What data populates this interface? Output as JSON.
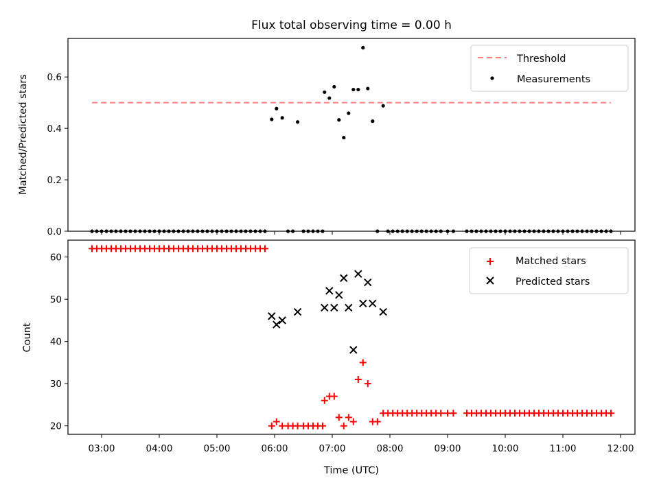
{
  "chart_data": [
    {
      "type": "scatter",
      "title": "Flux total observing time = 0.00 h",
      "ylabel": "Matched/Predicted stars",
      "xlim": [
        "02:25",
        "12:15"
      ],
      "ylim": [
        0,
        0.75
      ],
      "yticks": [
        "0.0",
        "0.2",
        "0.4",
        "0.6"
      ],
      "threshold": {
        "name": "Threshold",
        "value": 0.5,
        "x_start": "02:50",
        "x_end": "11:50",
        "color": "#ff7f7f"
      },
      "legend": {
        "position": "top-right",
        "entries": [
          "Threshold",
          "Measurements"
        ]
      },
      "series": [
        {
          "name": "Measurements",
          "color": "#000000",
          "points": [
            [
              "02:50",
              0
            ],
            [
              "02:55",
              0
            ],
            [
              "03:00",
              0
            ],
            [
              "03:05",
              0
            ],
            [
              "03:10",
              0
            ],
            [
              "03:15",
              0
            ],
            [
              "03:20",
              0
            ],
            [
              "03:25",
              0
            ],
            [
              "03:30",
              0
            ],
            [
              "03:35",
              0
            ],
            [
              "03:40",
              0
            ],
            [
              "03:45",
              0
            ],
            [
              "03:50",
              0
            ],
            [
              "03:55",
              0
            ],
            [
              "04:00",
              0
            ],
            [
              "04:05",
              0
            ],
            [
              "04:10",
              0
            ],
            [
              "04:15",
              0
            ],
            [
              "04:20",
              0
            ],
            [
              "04:25",
              0
            ],
            [
              "04:30",
              0
            ],
            [
              "04:35",
              0
            ],
            [
              "04:40",
              0
            ],
            [
              "04:45",
              0
            ],
            [
              "04:50",
              0
            ],
            [
              "04:55",
              0
            ],
            [
              "05:00",
              0
            ],
            [
              "05:05",
              0
            ],
            [
              "05:10",
              0
            ],
            [
              "05:15",
              0
            ],
            [
              "05:20",
              0
            ],
            [
              "05:25",
              0
            ],
            [
              "05:30",
              0
            ],
            [
              "05:35",
              0
            ],
            [
              "05:40",
              0
            ],
            [
              "05:45",
              0
            ],
            [
              "05:50",
              0
            ],
            [
              "05:57",
              0.435
            ],
            [
              "06:02",
              0.477
            ],
            [
              "06:08",
              0.441
            ],
            [
              "06:14",
              0
            ],
            [
              "06:19",
              0
            ],
            [
              "06:24",
              0.425
            ],
            [
              "06:30",
              0
            ],
            [
              "06:35",
              0
            ],
            [
              "06:40",
              0
            ],
            [
              "06:45",
              0
            ],
            [
              "06:50",
              0
            ],
            [
              "06:52",
              0.541
            ],
            [
              "06:57",
              0.518
            ],
            [
              "07:02",
              0.562
            ],
            [
              "07:07",
              0.433
            ],
            [
              "07:12",
              0.364
            ],
            [
              "07:17",
              0.459
            ],
            [
              "07:22",
              0.551
            ],
            [
              "07:27",
              0.551
            ],
            [
              "07:32",
              0.714
            ],
            [
              "07:37",
              0.555
            ],
            [
              "07:42",
              0.428
            ],
            [
              "07:47",
              0
            ],
            [
              "07:53",
              0.488
            ],
            [
              "07:58",
              0
            ],
            [
              "08:03",
              0
            ],
            [
              "08:08",
              0
            ],
            [
              "08:13",
              0
            ],
            [
              "08:18",
              0
            ],
            [
              "08:23",
              0
            ],
            [
              "08:28",
              0
            ],
            [
              "08:33",
              0
            ],
            [
              "08:38",
              0
            ],
            [
              "08:43",
              0
            ],
            [
              "08:48",
              0
            ],
            [
              "08:53",
              0
            ],
            [
              "09:00",
              0
            ],
            [
              "09:06",
              0
            ],
            [
              "09:20",
              0
            ],
            [
              "09:25",
              0
            ],
            [
              "09:30",
              0
            ],
            [
              "09:35",
              0
            ],
            [
              "09:40",
              0
            ],
            [
              "09:45",
              0
            ],
            [
              "09:50",
              0
            ],
            [
              "09:55",
              0
            ],
            [
              "10:00",
              0
            ],
            [
              "10:05",
              0
            ],
            [
              "10:10",
              0
            ],
            [
              "10:15",
              0
            ],
            [
              "10:20",
              0
            ],
            [
              "10:25",
              0
            ],
            [
              "10:30",
              0
            ],
            [
              "10:35",
              0
            ],
            [
              "10:40",
              0
            ],
            [
              "10:45",
              0
            ],
            [
              "10:50",
              0
            ],
            [
              "10:55",
              0
            ],
            [
              "11:00",
              0
            ],
            [
              "11:05",
              0
            ],
            [
              "11:10",
              0
            ],
            [
              "11:15",
              0
            ],
            [
              "11:20",
              0
            ],
            [
              "11:25",
              0
            ],
            [
              "11:30",
              0
            ],
            [
              "11:35",
              0
            ],
            [
              "11:40",
              0
            ],
            [
              "11:45",
              0
            ],
            [
              "11:50",
              0
            ]
          ]
        }
      ]
    },
    {
      "type": "scatter",
      "xlabel": "Time (UTC)",
      "ylabel": "Count",
      "xlim": [
        "02:25",
        "12:15"
      ],
      "ylim": [
        18,
        64
      ],
      "xticks": [
        "03:00",
        "04:00",
        "05:00",
        "06:00",
        "07:00",
        "08:00",
        "09:00",
        "10:00",
        "11:00",
        "12:00"
      ],
      "yticks": [
        "20",
        "30",
        "40",
        "50",
        "60"
      ],
      "legend": {
        "position": "top-right",
        "entries": [
          "Matched stars",
          "Predicted stars"
        ]
      },
      "series": [
        {
          "name": "Matched stars",
          "marker": "+",
          "color": "#ff0000",
          "points": [
            [
              "02:50",
              62
            ],
            [
              "02:55",
              62
            ],
            [
              "03:00",
              62
            ],
            [
              "03:05",
              62
            ],
            [
              "03:10",
              62
            ],
            [
              "03:15",
              62
            ],
            [
              "03:20",
              62
            ],
            [
              "03:25",
              62
            ],
            [
              "03:30",
              62
            ],
            [
              "03:35",
              62
            ],
            [
              "03:40",
              62
            ],
            [
              "03:45",
              62
            ],
            [
              "03:50",
              62
            ],
            [
              "03:55",
              62
            ],
            [
              "04:00",
              62
            ],
            [
              "04:05",
              62
            ],
            [
              "04:10",
              62
            ],
            [
              "04:15",
              62
            ],
            [
              "04:20",
              62
            ],
            [
              "04:25",
              62
            ],
            [
              "04:30",
              62
            ],
            [
              "04:35",
              62
            ],
            [
              "04:40",
              62
            ],
            [
              "04:45",
              62
            ],
            [
              "04:50",
              62
            ],
            [
              "04:55",
              62
            ],
            [
              "05:00",
              62
            ],
            [
              "05:05",
              62
            ],
            [
              "05:10",
              62
            ],
            [
              "05:15",
              62
            ],
            [
              "05:20",
              62
            ],
            [
              "05:25",
              62
            ],
            [
              "05:30",
              62
            ],
            [
              "05:35",
              62
            ],
            [
              "05:40",
              62
            ],
            [
              "05:45",
              62
            ],
            [
              "05:50",
              62
            ],
            [
              "05:57",
              20
            ],
            [
              "06:02",
              21
            ],
            [
              "06:08",
              20
            ],
            [
              "06:14",
              20
            ],
            [
              "06:19",
              20
            ],
            [
              "06:24",
              20
            ],
            [
              "06:30",
              20
            ],
            [
              "06:35",
              20
            ],
            [
              "06:40",
              20
            ],
            [
              "06:45",
              20
            ],
            [
              "06:50",
              20
            ],
            [
              "06:52",
              26
            ],
            [
              "06:57",
              27
            ],
            [
              "07:02",
              27
            ],
            [
              "07:07",
              22
            ],
            [
              "07:12",
              20
            ],
            [
              "07:17",
              22
            ],
            [
              "07:22",
              21
            ],
            [
              "07:27",
              31
            ],
            [
              "07:32",
              35
            ],
            [
              "07:37",
              30
            ],
            [
              "07:42",
              21
            ],
            [
              "07:47",
              21
            ],
            [
              "07:53",
              23
            ],
            [
              "07:58",
              23
            ],
            [
              "08:03",
              23
            ],
            [
              "08:08",
              23
            ],
            [
              "08:13",
              23
            ],
            [
              "08:18",
              23
            ],
            [
              "08:23",
              23
            ],
            [
              "08:28",
              23
            ],
            [
              "08:33",
              23
            ],
            [
              "08:38",
              23
            ],
            [
              "08:43",
              23
            ],
            [
              "08:48",
              23
            ],
            [
              "08:53",
              23
            ],
            [
              "09:00",
              23
            ],
            [
              "09:06",
              23
            ],
            [
              "09:20",
              23
            ],
            [
              "09:25",
              23
            ],
            [
              "09:30",
              23
            ],
            [
              "09:35",
              23
            ],
            [
              "09:40",
              23
            ],
            [
              "09:45",
              23
            ],
            [
              "09:50",
              23
            ],
            [
              "09:55",
              23
            ],
            [
              "10:00",
              23
            ],
            [
              "10:05",
              23
            ],
            [
              "10:10",
              23
            ],
            [
              "10:15",
              23
            ],
            [
              "10:20",
              23
            ],
            [
              "10:25",
              23
            ],
            [
              "10:30",
              23
            ],
            [
              "10:35",
              23
            ],
            [
              "10:40",
              23
            ],
            [
              "10:45",
              23
            ],
            [
              "10:50",
              23
            ],
            [
              "10:55",
              23
            ],
            [
              "11:00",
              23
            ],
            [
              "11:05",
              23
            ],
            [
              "11:10",
              23
            ],
            [
              "11:15",
              23
            ],
            [
              "11:20",
              23
            ],
            [
              "11:25",
              23
            ],
            [
              "11:30",
              23
            ],
            [
              "11:35",
              23
            ],
            [
              "11:40",
              23
            ],
            [
              "11:45",
              23
            ],
            [
              "11:50",
              23
            ]
          ]
        },
        {
          "name": "Predicted stars",
          "marker": "x",
          "color": "#000000",
          "points": [
            [
              "05:57",
              46
            ],
            [
              "06:02",
              44
            ],
            [
              "06:08",
              45
            ],
            [
              "06:24",
              47
            ],
            [
              "06:52",
              48
            ],
            [
              "06:57",
              52
            ],
            [
              "07:02",
              48
            ],
            [
              "07:07",
              51
            ],
            [
              "07:12",
              55
            ],
            [
              "07:17",
              48
            ],
            [
              "07:22",
              38
            ],
            [
              "07:27",
              56
            ],
            [
              "07:32",
              49
            ],
            [
              "07:37",
              54
            ],
            [
              "07:42",
              49
            ],
            [
              "07:53",
              47
            ]
          ]
        }
      ]
    }
  ]
}
